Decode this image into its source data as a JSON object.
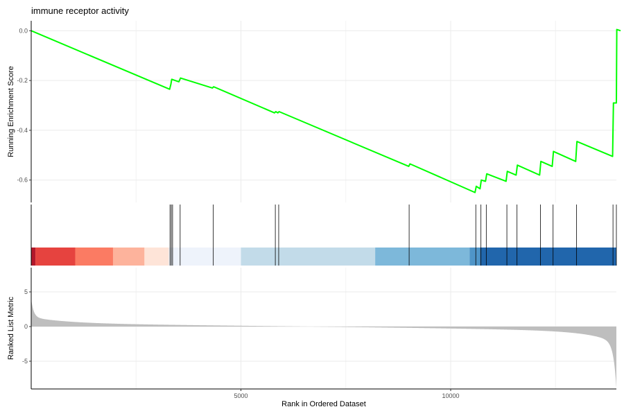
{
  "chart_data": {
    "type": "line",
    "title": "immune receptor activity",
    "xlabel": "Rank in Ordered Dataset",
    "xlim": [
      0,
      13950
    ],
    "x_ticks": [
      5000,
      10000
    ],
    "x_tick_labels": [
      "5000",
      "10000"
    ],
    "panels": [
      {
        "name": "running-score",
        "ylabel": "Running Enrichment Score",
        "ylim": [
          -0.69,
          0.04
        ],
        "y_ticks": [
          0.0,
          -0.2,
          -0.4,
          -0.6
        ],
        "y_tick_labels": [
          "0.0",
          "-0.2",
          "-0.4",
          "-0.6"
        ],
        "line_color": "#00ff00",
        "points": [
          [
            0,
            0.0
          ],
          [
            3300,
            -0.235
          ],
          [
            3330,
            -0.215
          ],
          [
            3350,
            -0.195
          ],
          [
            3520,
            -0.205
          ],
          [
            3560,
            -0.19
          ],
          [
            4320,
            -0.23
          ],
          [
            4350,
            -0.225
          ],
          [
            5800,
            -0.33
          ],
          [
            5830,
            -0.325
          ],
          [
            5880,
            -0.33
          ],
          [
            5910,
            -0.325
          ],
          [
            9000,
            -0.545
          ],
          [
            9030,
            -0.535
          ],
          [
            10580,
            -0.65
          ],
          [
            10610,
            -0.625
          ],
          [
            10700,
            -0.635
          ],
          [
            10730,
            -0.6
          ],
          [
            10830,
            -0.605
          ],
          [
            10860,
            -0.575
          ],
          [
            11320,
            -0.605
          ],
          [
            11350,
            -0.565
          ],
          [
            11560,
            -0.58
          ],
          [
            11590,
            -0.54
          ],
          [
            12120,
            -0.58
          ],
          [
            12150,
            -0.525
          ],
          [
            12420,
            -0.545
          ],
          [
            12450,
            -0.485
          ],
          [
            12980,
            -0.525
          ],
          [
            13010,
            -0.445
          ],
          [
            13860,
            -0.505
          ],
          [
            13880,
            -0.29
          ],
          [
            13950,
            -0.29
          ],
          [
            13960,
            0.005
          ],
          [
            14050,
            0.0
          ]
        ]
      },
      {
        "name": "hits",
        "hit_positions": [
          3310,
          3340,
          3370,
          3550,
          4340,
          5820,
          5900,
          9010,
          10600,
          10720,
          10850,
          11340,
          11580,
          12140,
          12440,
          13000,
          13870,
          13950
        ]
      },
      {
        "name": "ranked-list",
        "ylabel": "Ranked List Metric",
        "ylim": [
          -9,
          8.5
        ],
        "y_ticks": [
          5,
          0,
          -5
        ],
        "y_tick_labels": [
          "5",
          "0",
          "-5"
        ],
        "fill_color": "#bebebe"
      }
    ],
    "color_band": [
      {
        "from": 0,
        "to": 100,
        "color": "#b2182b"
      },
      {
        "from": 100,
        "to": 1050,
        "color": "#e6433f"
      },
      {
        "from": 1050,
        "to": 1950,
        "color": "#fb7b63"
      },
      {
        "from": 1950,
        "to": 2700,
        "color": "#fdb39c"
      },
      {
        "from": 2700,
        "to": 3280,
        "color": "#fee4d8"
      },
      {
        "from": 3280,
        "to": 5000,
        "color": "#eef3fb"
      },
      {
        "from": 5000,
        "to": 8200,
        "color": "#c2dbe9"
      },
      {
        "from": 8200,
        "to": 10450,
        "color": "#7db8da"
      },
      {
        "from": 10450,
        "to": 10700,
        "color": "#4f95c8"
      },
      {
        "from": 10700,
        "to": 13950,
        "color": "#2166ac"
      }
    ],
    "grid": true,
    "legend": "none"
  }
}
